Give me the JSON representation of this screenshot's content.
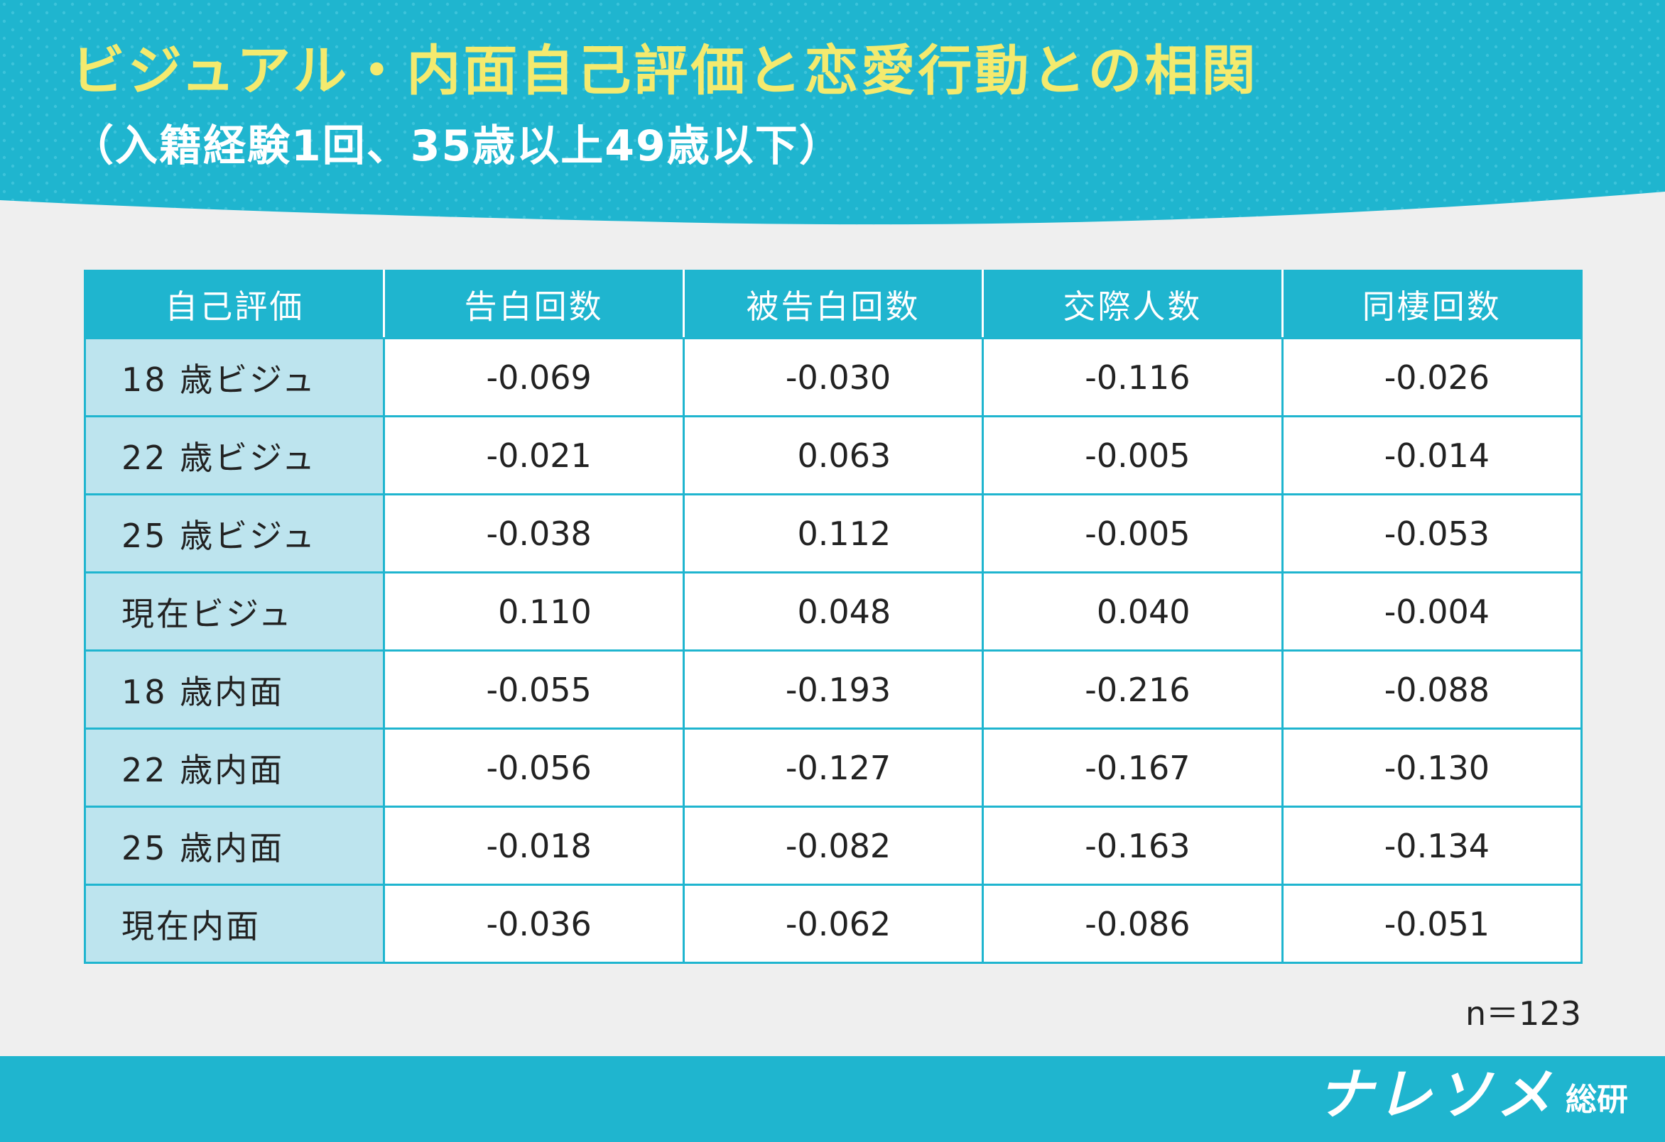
{
  "colors": {
    "accent": "#1fb5cf",
    "title_yellow": "#f4ea6e",
    "row_label_bg": "#bde4ee",
    "page_bg": "#efefef"
  },
  "header": {
    "title": "ビジュアル・内面自己評価と恋愛行動との相関",
    "subtitle": "（入籍経験1回、35歳以上49歳以下）"
  },
  "chart_data": {
    "type": "table",
    "title": "ビジュアル・内面自己評価と恋愛行動との相関",
    "subtitle": "（入籍経験1回、35歳以上49歳以下）",
    "columns": [
      "自己評価",
      "告白回数",
      "被告白回数",
      "交際人数",
      "同棲回数"
    ],
    "rows": [
      {
        "label": "18 歳ビジュ",
        "values": [
          "-0.069",
          "-0.030",
          "-0.116",
          "-0.026"
        ]
      },
      {
        "label": "22 歳ビジュ",
        "values": [
          "-0.021",
          "0.063",
          "-0.005",
          "-0.014"
        ]
      },
      {
        "label": "25 歳ビジュ",
        "values": [
          "-0.038",
          "0.112",
          "-0.005",
          "-0.053"
        ]
      },
      {
        "label": "現在ビジュ",
        "values": [
          "0.110",
          "0.048",
          "0.040",
          "-0.004"
        ]
      },
      {
        "label": "18 歳内面",
        "values": [
          "-0.055",
          "-0.193",
          "-0.216",
          "-0.088"
        ]
      },
      {
        "label": "22 歳内面",
        "values": [
          "-0.056",
          "-0.127",
          "-0.167",
          "-0.130"
        ]
      },
      {
        "label": "25 歳内面",
        "values": [
          "-0.018",
          "-0.082",
          "-0.163",
          "-0.134"
        ]
      },
      {
        "label": "現在内面",
        "values": [
          "-0.036",
          "-0.062",
          "-0.086",
          "-0.051"
        ]
      }
    ],
    "note": "n＝123"
  },
  "footer": {
    "logo_main": "ナレソメ",
    "logo_sub": "総研"
  }
}
